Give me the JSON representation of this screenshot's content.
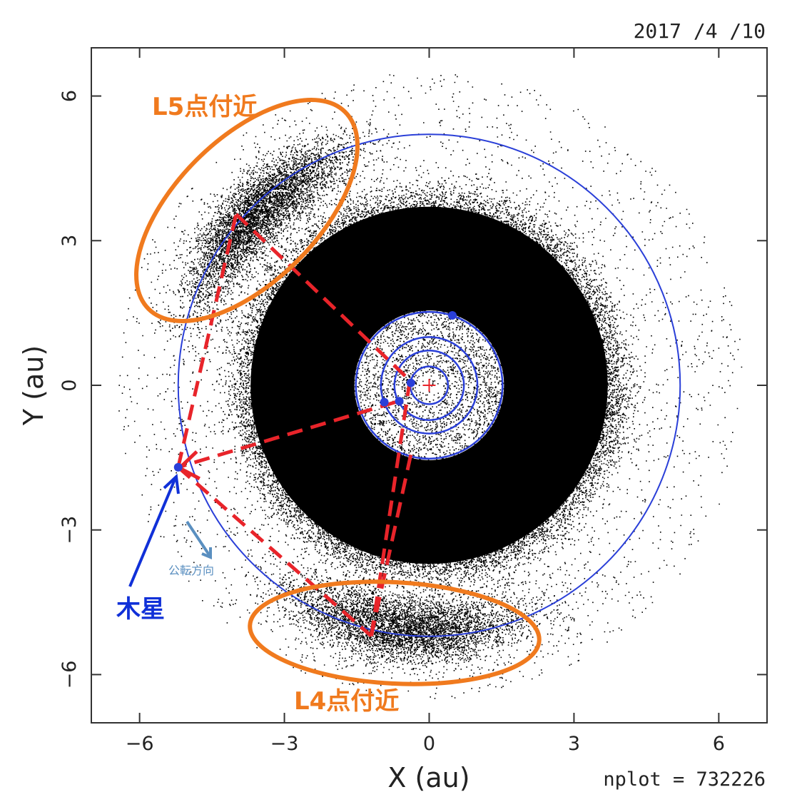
{
  "chart_data": {
    "type": "scatter",
    "date_label": "2017 /4 /10",
    "nplot_label": "nplot = 732226",
    "xlabel": "X (au)",
    "ylabel": "Y (au)",
    "xlim": [
      -7,
      7
    ],
    "ylim": [
      -7,
      7
    ],
    "xticks": [
      -6,
      -3,
      0,
      3,
      6
    ],
    "yticks": [
      -6,
      -3,
      0,
      3,
      6
    ],
    "xtick_labels": [
      "−6",
      "−3",
      "0",
      "3",
      "6"
    ],
    "ytick_labels": [
      "−6",
      "−3",
      "0",
      "3",
      "6"
    ],
    "grid": false,
    "sun": {
      "x": 0,
      "y": 0
    },
    "orbits": [
      {
        "radius": 0.39
      },
      {
        "radius": 0.72
      },
      {
        "radius": 1.0
      },
      {
        "radius": 1.52
      },
      {
        "radius": 5.2
      }
    ],
    "planets": [
      {
        "x": -0.38,
        "y": 0.05
      },
      {
        "x": -0.62,
        "y": -0.33
      },
      {
        "x": -0.93,
        "y": -0.35
      },
      {
        "x": 0.48,
        "y": 1.45
      },
      {
        "x": -5.2,
        "y": -1.7
      }
    ],
    "jupiter": {
      "x": -5.2,
      "y": -1.7
    },
    "l5_point": {
      "x": -4.0,
      "y": 3.55
    },
    "l4_point": {
      "x": -1.2,
      "y": -5.2
    },
    "dashed_lines": [
      {
        "from": [
          -5.2,
          -1.7
        ],
        "to": [
          -4.0,
          3.55
        ]
      },
      {
        "from": [
          -4.0,
          3.55
        ],
        "to": [
          -0.4,
          0.1
        ]
      },
      {
        "from": [
          -5.2,
          -1.7
        ],
        "to": [
          -1.2,
          -5.2
        ]
      },
      {
        "from": [
          -1.2,
          -5.2
        ],
        "to": [
          -0.4,
          0.1
        ]
      },
      {
        "from": [
          -1.2,
          -5.2
        ],
        "to": [
          -0.35,
          -1.3
        ]
      },
      {
        "from": [
          -0.7,
          -0.35
        ],
        "to": [
          -5.2,
          -1.7
        ]
      }
    ],
    "annotations": {
      "l5_label": "L5点付近",
      "l4_label": "L4点付近",
      "jupiter_label": "木星",
      "direction_label": "公転方向"
    },
    "colors": {
      "orbit": "#2A3FD8",
      "dashed": "#E8242A",
      "ellipse": "#F07A1E",
      "points": "#000000",
      "sun_marker": "#E8242A",
      "jupiter_arrow": "#1030D8",
      "direction_arrow": "#5A8FC0"
    }
  }
}
